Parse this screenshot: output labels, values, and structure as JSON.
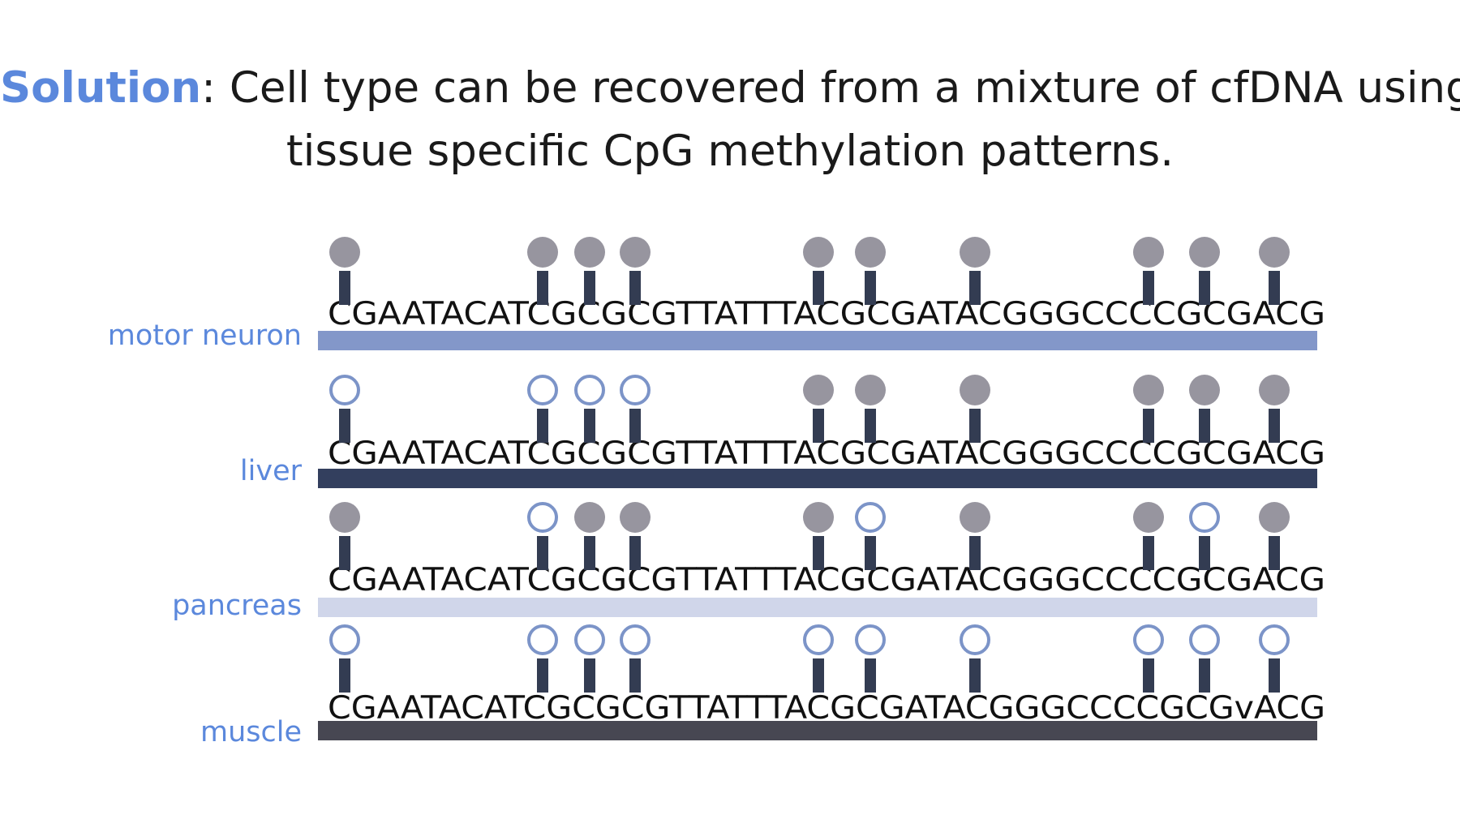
{
  "header": {
    "highlight": "Solution",
    "separator": ":",
    "line1_rest": " Cell type can be recovered from a mixture of cfDNA using",
    "line2": "tissue specific CpG methylation patterns."
  },
  "colors": {
    "accent": "#5b88dc",
    "label_text": "#5b88dc",
    "methylated_fill": "#97959f",
    "unmethylated_stroke": "#7c94c8",
    "stem": "#333c52"
  },
  "legend_semantics": {
    "filled_circle": "methylated CpG",
    "open_circle": "unmethylated CpG"
  },
  "rows": [
    {
      "label": "motor neuron",
      "sequence": "CGAATACATCGCGCGTTATTTACGCGATACGGGCCCCGCGACG",
      "bar_color": "#8397c9",
      "cpg_states": [
        "methylated",
        "methylated",
        "methylated",
        "methylated",
        "methylated",
        "methylated",
        "methylated",
        "methylated",
        "methylated",
        "methylated"
      ]
    },
    {
      "label": "liver",
      "sequence": "CGAATACATCGCGCGTTATTTACGCGATACGGGCCCCGCGACG",
      "bar_color": "#333f5e",
      "cpg_states": [
        "unmethylated",
        "unmethylated",
        "unmethylated",
        "unmethylated",
        "methylated",
        "methylated",
        "methylated",
        "methylated",
        "methylated",
        "methylated"
      ]
    },
    {
      "label": "pancreas",
      "sequence": "CGAATACATCGCGCGTTATTTACGCGATACGGGCCCCGCGACG",
      "bar_color": "#d0d6ea",
      "cpg_states": [
        "methylated",
        "unmethylated",
        "methylated",
        "methylated",
        "methylated",
        "unmethylated",
        "methylated",
        "methylated",
        "unmethylated",
        "methylated"
      ]
    },
    {
      "label": "muscle",
      "sequence": "CGAATACATCGCGCGTTATTTACGCGATACGGGCCCCGCGvACG",
      "bar_color": "#474752",
      "cpg_states": [
        "unmethylated",
        "unmethylated",
        "unmethylated",
        "unmethylated",
        "unmethylated",
        "unmethylated",
        "unmethylated",
        "unmethylated",
        "unmethylated",
        "unmethylated"
      ]
    }
  ]
}
